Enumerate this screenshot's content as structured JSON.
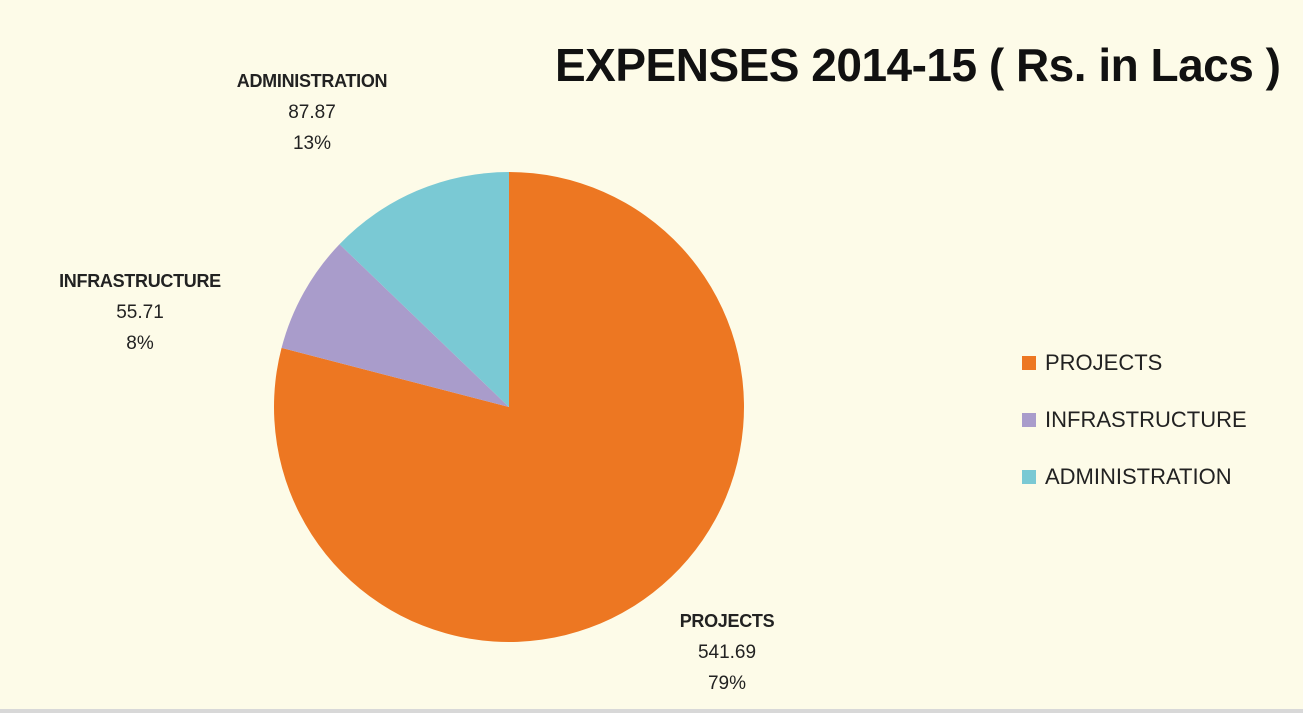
{
  "chart_data": {
    "type": "pie",
    "title": "EXPENSES 2014-15 ( Rs. in Lacs )",
    "legend_position": "right",
    "slices": [
      {
        "name": "PROJECTS",
        "value": 541.69,
        "value_label": "541.69",
        "percent_label": "79%",
        "color": "#ed7722"
      },
      {
        "name": "INFRASTRUCTURE",
        "value": 55.71,
        "value_label": "55.71",
        "percent_label": "8%",
        "color": "#a99ccb"
      },
      {
        "name": "ADMINISTRATION",
        "value": 87.87,
        "value_label": "87.87",
        "percent_label": "13%",
        "color": "#7ac9d4"
      }
    ]
  }
}
